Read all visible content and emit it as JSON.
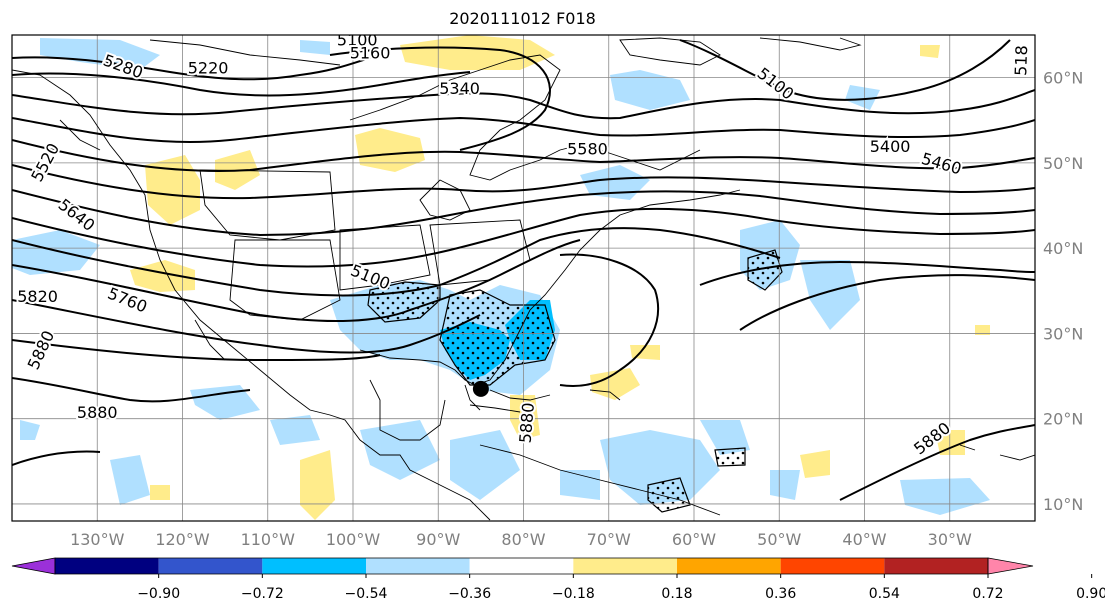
{
  "title": "2020111012 F018",
  "map": {
    "lon_min": -140,
    "lon_max": -20,
    "lat_min": 8,
    "lat_max": 65,
    "lon_labels": [
      "130°W",
      "120°W",
      "110°W",
      "100°W",
      "90°W",
      "80°W",
      "70°W",
      "60°W",
      "50°W",
      "40°W",
      "30°W"
    ],
    "lat_labels": [
      "10°N",
      "20°N",
      "30°N",
      "40°N",
      "50°N",
      "60°N"
    ],
    "contour_labels": [
      {
        "text": "5100",
        "lon": -99.5,
        "lat": 64.3,
        "rot": 0
      },
      {
        "text": "5160",
        "lon": -98,
        "lat": 62.8,
        "rot": 0
      },
      {
        "text": "5220",
        "lon": -117,
        "lat": 61.0,
        "rot": 0
      },
      {
        "text": "5280",
        "lon": -127,
        "lat": 61.2,
        "rot": 20
      },
      {
        "text": "5340",
        "lon": -87.5,
        "lat": 58.6,
        "rot": 0
      },
      {
        "text": "5100",
        "lon": -50.5,
        "lat": 59.2,
        "rot": 38
      },
      {
        "text": "5580",
        "lon": -72.5,
        "lat": 51.5,
        "rot": 0
      },
      {
        "text": "5400",
        "lon": -37,
        "lat": 51.8,
        "rot": 0
      },
      {
        "text": "5460",
        "lon": -31,
        "lat": 49.8,
        "rot": 16
      },
      {
        "text": "5520",
        "lon": -136,
        "lat": 50.0,
        "rot": -62
      },
      {
        "text": "5640",
        "lon": -132.5,
        "lat": 43.8,
        "rot": 38
      },
      {
        "text": "5760",
        "lon": -126.5,
        "lat": 33.8,
        "rot": 22
      },
      {
        "text": "5820",
        "lon": -137,
        "lat": 34.2,
        "rot": 0
      },
      {
        "text": "5880",
        "lon": -136.5,
        "lat": 28.0,
        "rot": -65
      },
      {
        "text": "5880",
        "lon": -130,
        "lat": 20.6,
        "rot": 0
      },
      {
        "text": "5100",
        "lon": -98,
        "lat": 36.5,
        "rot": 22
      },
      {
        "text": "5880",
        "lon": -79.5,
        "lat": 19.5,
        "rot": -85
      },
      {
        "text": "5880",
        "lon": -32,
        "lat": 17.6,
        "rot": -38
      },
      {
        "text": "518",
        "lon": -21.5,
        "lat": 62.0,
        "rot": -88
      }
    ],
    "marker": {
      "lon": -85,
      "lat": 23.5
    }
  },
  "colorbar": {
    "ticks": [
      "−0.90",
      "−0.72",
      "−0.54",
      "−0.36",
      "−0.18",
      "0.18",
      "0.36",
      "0.54",
      "0.72",
      "0.90"
    ],
    "colors": [
      "#9b30d9",
      "#000080",
      "#3355cc",
      "#00bfff",
      "#b0e0ff",
      "#ffffff",
      "#ffec8b",
      "#ffa500",
      "#ff4500",
      "#b22222",
      "#ff85aa"
    ]
  },
  "palette": {
    "lightblue": "#b0e0ff",
    "blue": "#00bfff",
    "yellow": "#ffec8b"
  }
}
